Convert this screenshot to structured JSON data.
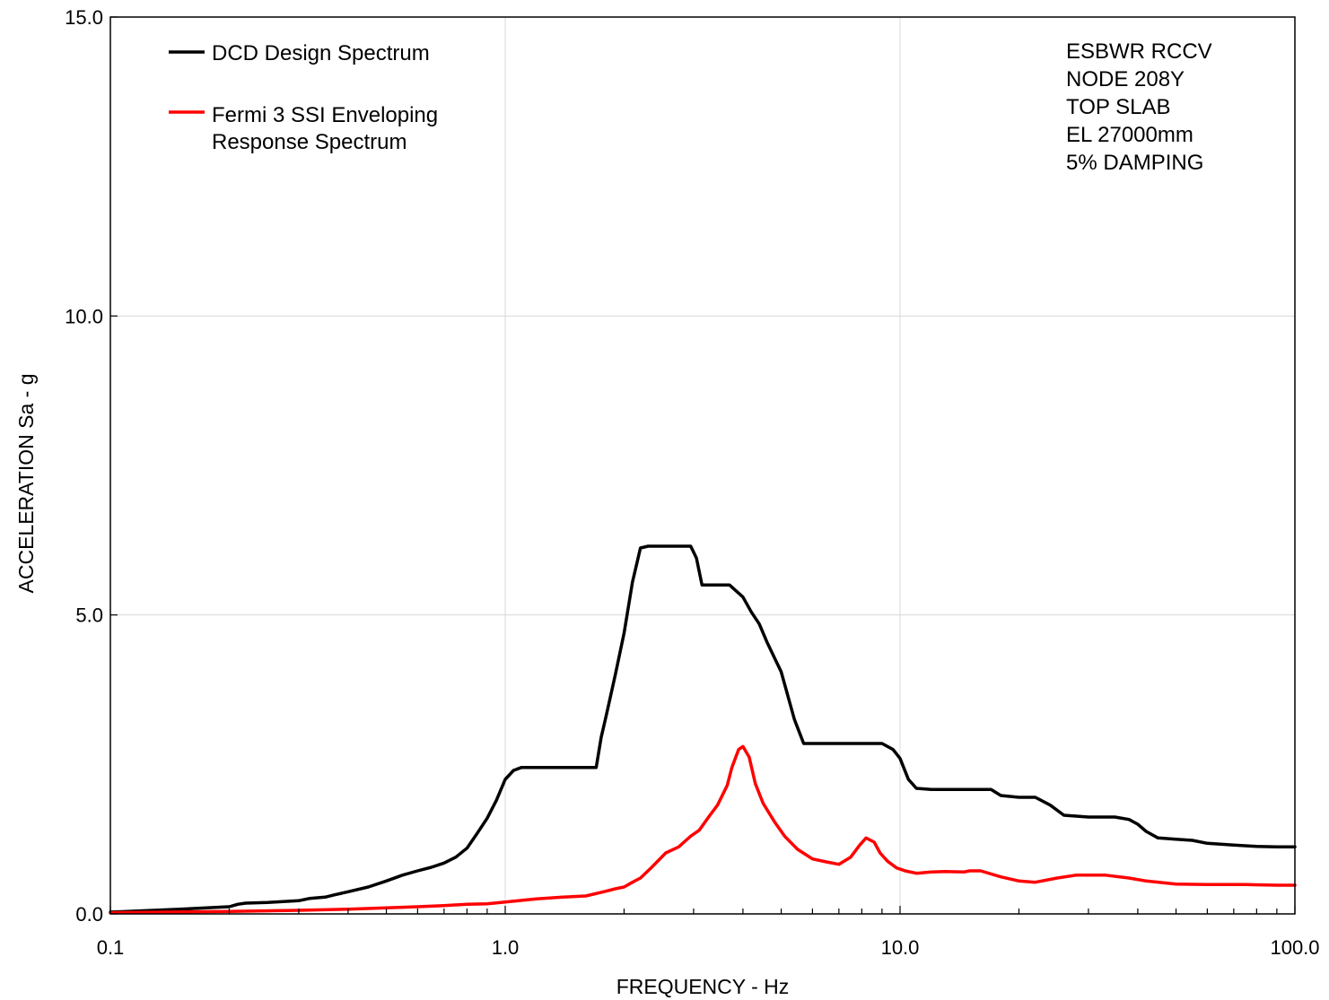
{
  "chart_data": {
    "type": "line",
    "xlabel": "FREQUENCY - Hz",
    "ylabel": "ACCELERATION Sa - g",
    "x_scale": "log",
    "xlim": [
      0.1,
      100.0
    ],
    "ylim": [
      0.0,
      15.0
    ],
    "grid": true,
    "legend_position": "top-left",
    "x_ticks": [
      {
        "value": 0.1,
        "label": "0.1"
      },
      {
        "value": 1.0,
        "label": "1.0"
      },
      {
        "value": 10.0,
        "label": "10.0"
      },
      {
        "value": 100.0,
        "label": "100.0"
      }
    ],
    "y_ticks": [
      {
        "value": 0.0,
        "label": "0.0"
      },
      {
        "value": 5.0,
        "label": "5.0"
      },
      {
        "value": 10.0,
        "label": "10.0"
      },
      {
        "value": 15.0,
        "label": "15.0"
      }
    ],
    "annotation_lines": [
      "ESBWR RCCV",
      "NODE 208Y",
      "TOP SLAB",
      "EL 27000mm",
      "5% DAMPING"
    ],
    "series": [
      {
        "name": "DCD Design Spectrum",
        "color": "#000000",
        "x": [
          0.1,
          0.15,
          0.2,
          0.21,
          0.22,
          0.25,
          0.3,
          0.32,
          0.35,
          0.37,
          0.4,
          0.45,
          0.5,
          0.55,
          0.6,
          0.65,
          0.7,
          0.75,
          0.8,
          0.85,
          0.9,
          0.95,
          1.0,
          1.05,
          1.1,
          1.3,
          1.5,
          1.7,
          1.75,
          1.8,
          1.9,
          2.0,
          2.1,
          2.2,
          2.3,
          2.5,
          2.8,
          2.95,
          3.05,
          3.15,
          3.4,
          3.7,
          4.0,
          4.2,
          4.4,
          4.6,
          5.0,
          5.4,
          5.7,
          6.0,
          7.0,
          8.0,
          9.0,
          9.6,
          10.0,
          10.5,
          11.0,
          12.0,
          15.0,
          17.0,
          18.0,
          20.0,
          22.0,
          24.0,
          26.0,
          30.0,
          35.0,
          38.0,
          40.0,
          42.0,
          45.0,
          50.0,
          55.0,
          60.0,
          70.0,
          80.0,
          90.0,
          100.0
        ],
        "y": [
          0.03,
          0.08,
          0.12,
          0.16,
          0.18,
          0.19,
          0.22,
          0.26,
          0.28,
          0.32,
          0.37,
          0.45,
          0.55,
          0.65,
          0.72,
          0.78,
          0.85,
          0.95,
          1.1,
          1.35,
          1.6,
          1.9,
          2.25,
          2.4,
          2.45,
          2.45,
          2.45,
          2.45,
          2.95,
          3.3,
          4.0,
          4.7,
          5.55,
          6.12,
          6.15,
          6.15,
          6.15,
          6.15,
          5.95,
          5.5,
          5.5,
          5.5,
          5.3,
          5.05,
          4.85,
          4.55,
          4.05,
          3.25,
          2.85,
          2.85,
          2.85,
          2.85,
          2.85,
          2.75,
          2.6,
          2.25,
          2.1,
          2.08,
          2.08,
          2.08,
          1.98,
          1.95,
          1.95,
          1.82,
          1.65,
          1.62,
          1.62,
          1.58,
          1.5,
          1.38,
          1.27,
          1.25,
          1.23,
          1.18,
          1.15,
          1.13,
          1.12,
          1.12
        ]
      },
      {
        "name": "Fermi 3 SSI Enveloping Response Spectrum",
        "color": "#ff0000",
        "x": [
          0.1,
          0.2,
          0.3,
          0.4,
          0.5,
          0.6,
          0.7,
          0.8,
          0.9,
          1.0,
          1.2,
          1.4,
          1.6,
          1.8,
          1.9,
          2.0,
          2.1,
          2.2,
          2.35,
          2.55,
          2.75,
          2.95,
          3.1,
          3.3,
          3.45,
          3.65,
          3.75,
          3.9,
          4.0,
          4.15,
          4.3,
          4.5,
          4.8,
          5.1,
          5.5,
          6.0,
          6.5,
          7.0,
          7.5,
          7.9,
          8.2,
          8.6,
          8.9,
          9.3,
          9.8,
          10.3,
          11.0,
          12.0,
          13.0,
          14.5,
          15.0,
          16.0,
          18.0,
          20.0,
          22.0,
          25.0,
          28.0,
          33.0,
          38.0,
          42.0,
          50.0,
          60.0,
          75.0,
          90.0,
          100.0
        ],
        "y": [
          0.02,
          0.04,
          0.06,
          0.08,
          0.1,
          0.12,
          0.14,
          0.16,
          0.17,
          0.2,
          0.25,
          0.28,
          0.3,
          0.38,
          0.42,
          0.45,
          0.53,
          0.6,
          0.78,
          1.02,
          1.12,
          1.3,
          1.4,
          1.65,
          1.82,
          2.15,
          2.45,
          2.75,
          2.8,
          2.62,
          2.18,
          1.85,
          1.55,
          1.3,
          1.08,
          0.92,
          0.87,
          0.83,
          0.95,
          1.15,
          1.27,
          1.2,
          1.02,
          0.88,
          0.77,
          0.72,
          0.68,
          0.7,
          0.71,
          0.7,
          0.72,
          0.72,
          0.62,
          0.55,
          0.53,
          0.6,
          0.65,
          0.65,
          0.6,
          0.55,
          0.5,
          0.49,
          0.49,
          0.48,
          0.48
        ]
      }
    ]
  }
}
